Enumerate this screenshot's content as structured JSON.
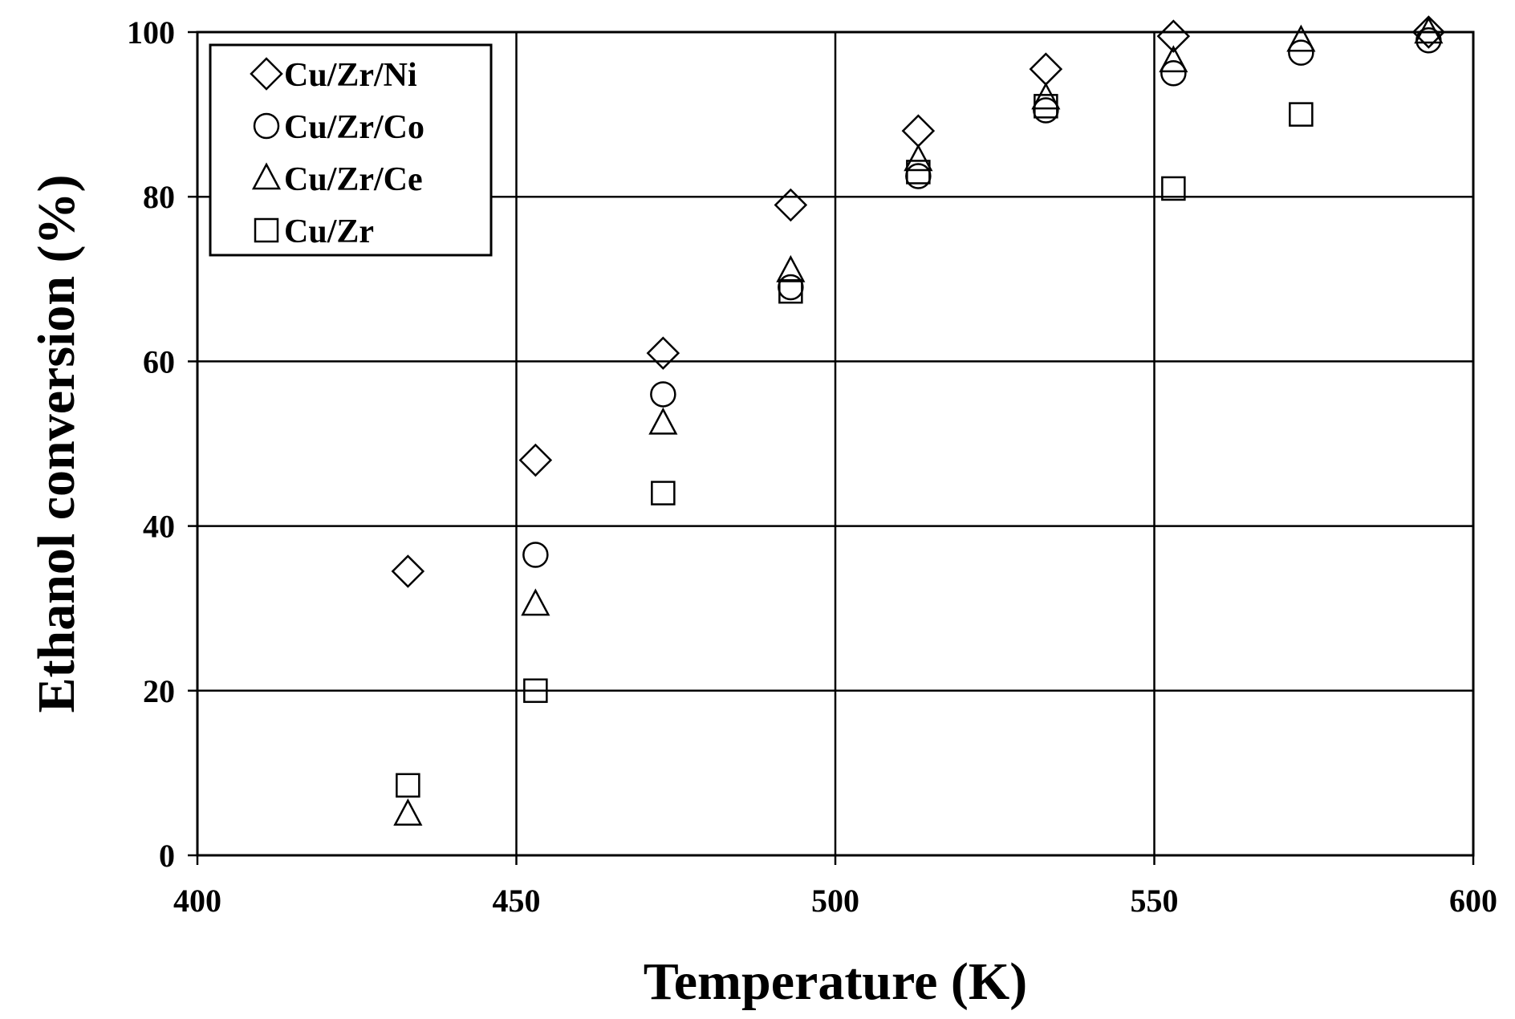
{
  "chart_data": {
    "type": "scatter",
    "title": "",
    "xlabel": "Temperature (K)",
    "ylabel": "Ethanol conversion (%)",
    "xlim": [
      400,
      600
    ],
    "ylim": [
      0,
      100
    ],
    "xticks": [
      "400",
      "450",
      "500",
      "550",
      "600"
    ],
    "yticks": [
      "0",
      "20",
      "40",
      "60",
      "80",
      "100"
    ],
    "grid": true,
    "legend_position": "top-left",
    "series": [
      {
        "name": "Cu/Zr/Ni",
        "marker": "diamond",
        "points": [
          [
            433,
            34.5
          ],
          [
            453,
            48
          ],
          [
            473,
            61
          ],
          [
            493,
            79
          ],
          [
            513,
            88
          ],
          [
            533,
            95.5
          ],
          [
            553,
            99.5
          ],
          [
            593,
            100
          ]
        ]
      },
      {
        "name": "Cu/Zr/Co",
        "marker": "circle",
        "points": [
          [
            453,
            36.5
          ],
          [
            473,
            56
          ],
          [
            493,
            69
          ],
          [
            513,
            82.5
          ],
          [
            533,
            90.5
          ],
          [
            553,
            95
          ],
          [
            573,
            97.5
          ],
          [
            593,
            99
          ]
        ]
      },
      {
        "name": "Cu/Zr/Ce",
        "marker": "triangle",
        "points": [
          [
            433,
            5
          ],
          [
            453,
            30.5
          ],
          [
            473,
            52.5
          ],
          [
            493,
            71
          ],
          [
            513,
            84.5
          ],
          [
            533,
            92
          ],
          [
            553,
            96.5
          ],
          [
            573,
            99
          ],
          [
            593,
            100
          ]
        ]
      },
      {
        "name": "Cu/Zr",
        "marker": "square",
        "points": [
          [
            433,
            8.5
          ],
          [
            453,
            20
          ],
          [
            473,
            44
          ],
          [
            493,
            68.5
          ],
          [
            513,
            83
          ],
          [
            533,
            91
          ],
          [
            553,
            81
          ],
          [
            573,
            90
          ]
        ]
      }
    ]
  }
}
